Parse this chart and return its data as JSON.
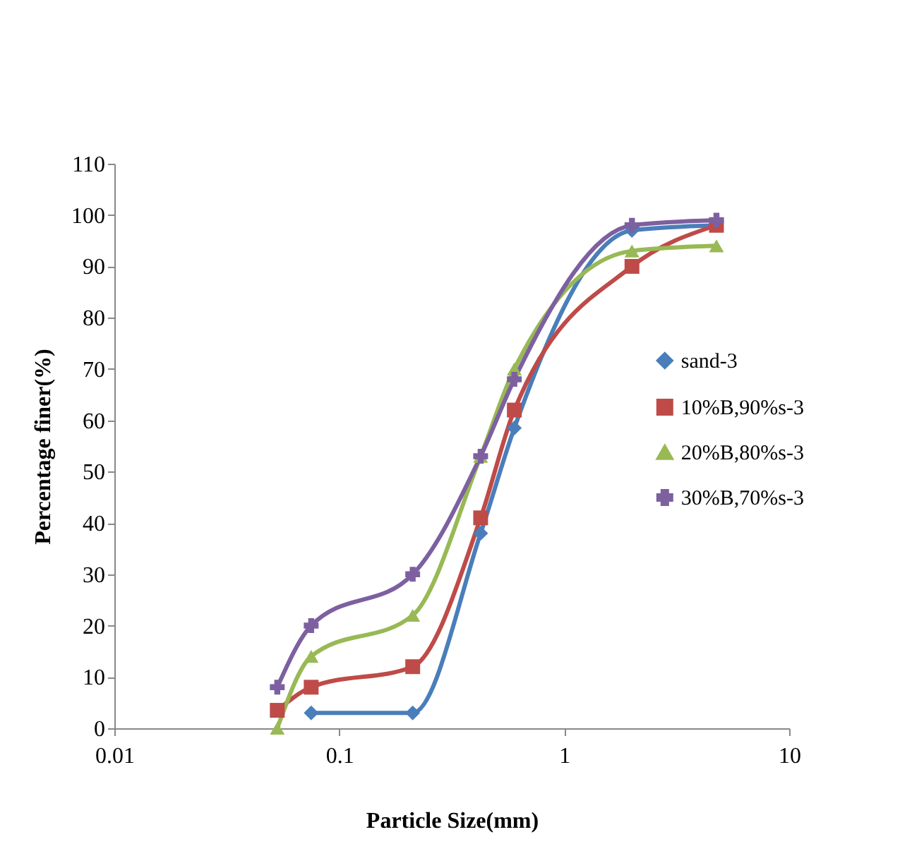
{
  "chart_data": {
    "type": "line",
    "xlabel": "Particle Size(mm)",
    "ylabel": "Percentage finer(%)",
    "x": [
      0.053,
      0.075,
      0.212,
      0.425,
      0.6,
      2,
      4.75
    ],
    "series": [
      {
        "name": "sand-3",
        "color": "#4a7ebb",
        "marker": "diamond",
        "values": [
          null,
          3,
          3,
          38,
          58.5,
          97,
          98
        ]
      },
      {
        "name": "10%B,90%s-3",
        "color": "#be4b48",
        "marker": "square",
        "values": [
          3.5,
          8,
          12,
          41,
          62,
          90,
          98
        ]
      },
      {
        "name": "20%B,80%s-3",
        "color": "#98b954",
        "marker": "triangle",
        "values": [
          0,
          14,
          22,
          53,
          70,
          93,
          94
        ]
      },
      {
        "name": "30%B,70%s-3",
        "color": "#7d60a0",
        "marker": "cross",
        "values": [
          8,
          20,
          30,
          53,
          68,
          98,
          99
        ]
      }
    ],
    "log": "x",
    "xlim": [
      0.01,
      10
    ],
    "xticks": [
      0.01,
      0.1,
      1,
      10
    ],
    "ylim": [
      0,
      110
    ],
    "yticks": [
      0,
      10,
      20,
      30,
      40,
      50,
      60,
      70,
      80,
      90,
      100,
      110
    ],
    "grid": false,
    "legend": "right"
  }
}
